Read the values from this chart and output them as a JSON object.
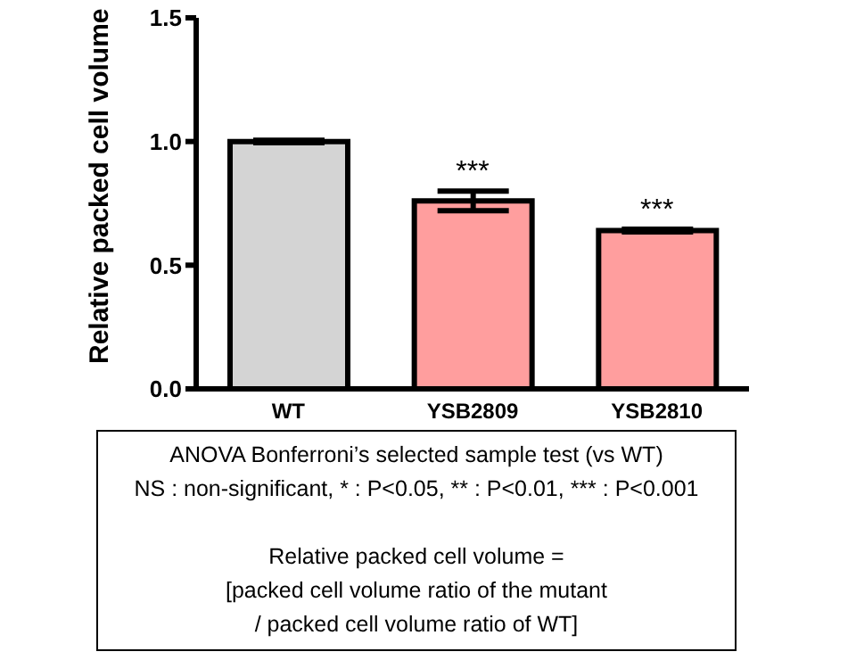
{
  "chart_data": {
    "type": "bar",
    "ylabel": "Relative packed cell volume",
    "categories": [
      "WT",
      "YSB2809",
      "YSB2810"
    ],
    "values": [
      1.0,
      0.76,
      0.64
    ],
    "colors": [
      "#d4d4d4",
      "#ff9e9e",
      "#ff9e9e"
    ],
    "errors": [
      0.005,
      0.04,
      0.005
    ],
    "ylim": [
      0,
      1.5
    ],
    "yticks": [
      {
        "value": 0,
        "label": "0.0"
      },
      {
        "value": 0.5,
        "label": "0.5"
      },
      {
        "value": 1,
        "label": "1.0"
      },
      {
        "value": 1.5,
        "label": "1.5"
      }
    ],
    "annotations": [
      {
        "text": "***",
        "x": "YSB2809",
        "y": 0.8
      },
      {
        "text": "***",
        "x": "YSB2810",
        "y": 0.645
      },
      "ANOVA Bonferroni’s selected sample test (vs WT)",
      "NS : non-significant, * : P<0.05, ** : P<0.01, *** : P<0.001",
      "Relative packed cell volume =",
      "[packed cell volume ratio of the mutant",
      "/ packed cell volume ratio of WT]"
    ]
  }
}
